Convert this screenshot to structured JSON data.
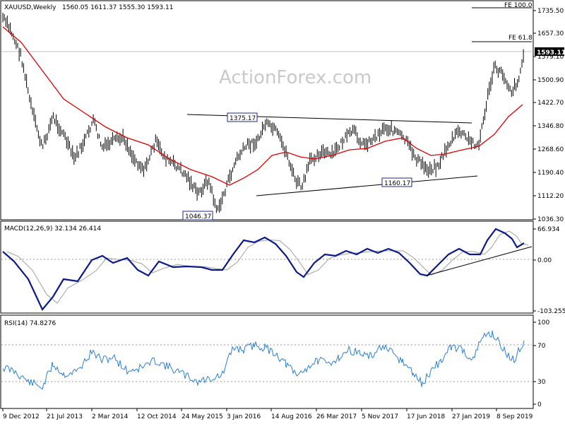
{
  "chart_data": {
    "type": "candlestick",
    "symbol_label": "XAUUSD,Weekly",
    "ohlc_label": "1560.05 1611.37 1555.30 1593.11",
    "watermark": "ActionForex.com",
    "price_tag": "1593.11",
    "price_ticks": [
      "1735.50",
      "1657.30",
      "1579.10",
      "1500.90",
      "1422.70",
      "1346.80",
      "1268.60",
      "1190.40",
      "1112.20",
      "1036.30"
    ],
    "x_tick_labels": [
      "9 Dec 2012",
      "21 Jul 2013",
      "2 Mar 2014",
      "12 Oct 2014",
      "24 May 2015",
      "3 Jan 2016",
      "14 Aug 2016",
      "26 Mar 2017",
      "5 Nov 2017",
      "17 Jun 2018",
      "27 Jan 2019",
      "8 Sep 2019"
    ],
    "annotations": {
      "fe100": "FE 100.0",
      "fe618": "FE 61.8",
      "high_2016": "1375.17",
      "low_2015": "1046.37",
      "low_2018": "1160.17"
    },
    "macd": {
      "label": "MACD(12,26,9) 32.134 26.414",
      "ticks": [
        "66.934",
        "0.00",
        "-103.255"
      ]
    },
    "rsi": {
      "label": "RSI(14) 74.8276",
      "ticks": [
        "100",
        "70",
        "30",
        "0"
      ]
    },
    "colors": {
      "moving_average": "#e00000",
      "macd_line": "#0a1a8c",
      "signal_line": "#a0a0a0",
      "rsi_line": "#2a7fd4"
    }
  }
}
